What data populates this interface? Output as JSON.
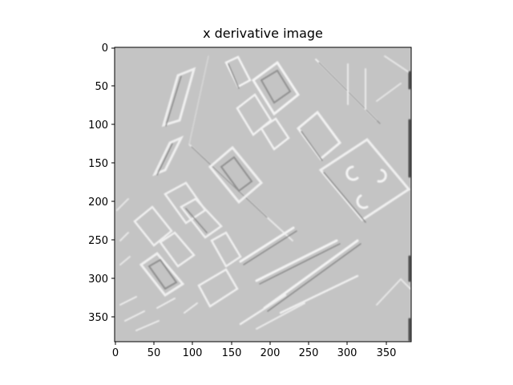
{
  "figure": {
    "title": "x derivative image"
  },
  "image_axes": {
    "x_ticks": [
      "0",
      "50",
      "100",
      "150",
      "200",
      "250",
      "300",
      "350"
    ],
    "y_ticks": [
      "0",
      "50",
      "100",
      "150",
      "200",
      "250",
      "300",
      "350"
    ],
    "x_range": [
      0,
      383
    ],
    "y_range": [
      383,
      0
    ],
    "background_color": "#c4c4c4",
    "colormap": "gray"
  }
}
